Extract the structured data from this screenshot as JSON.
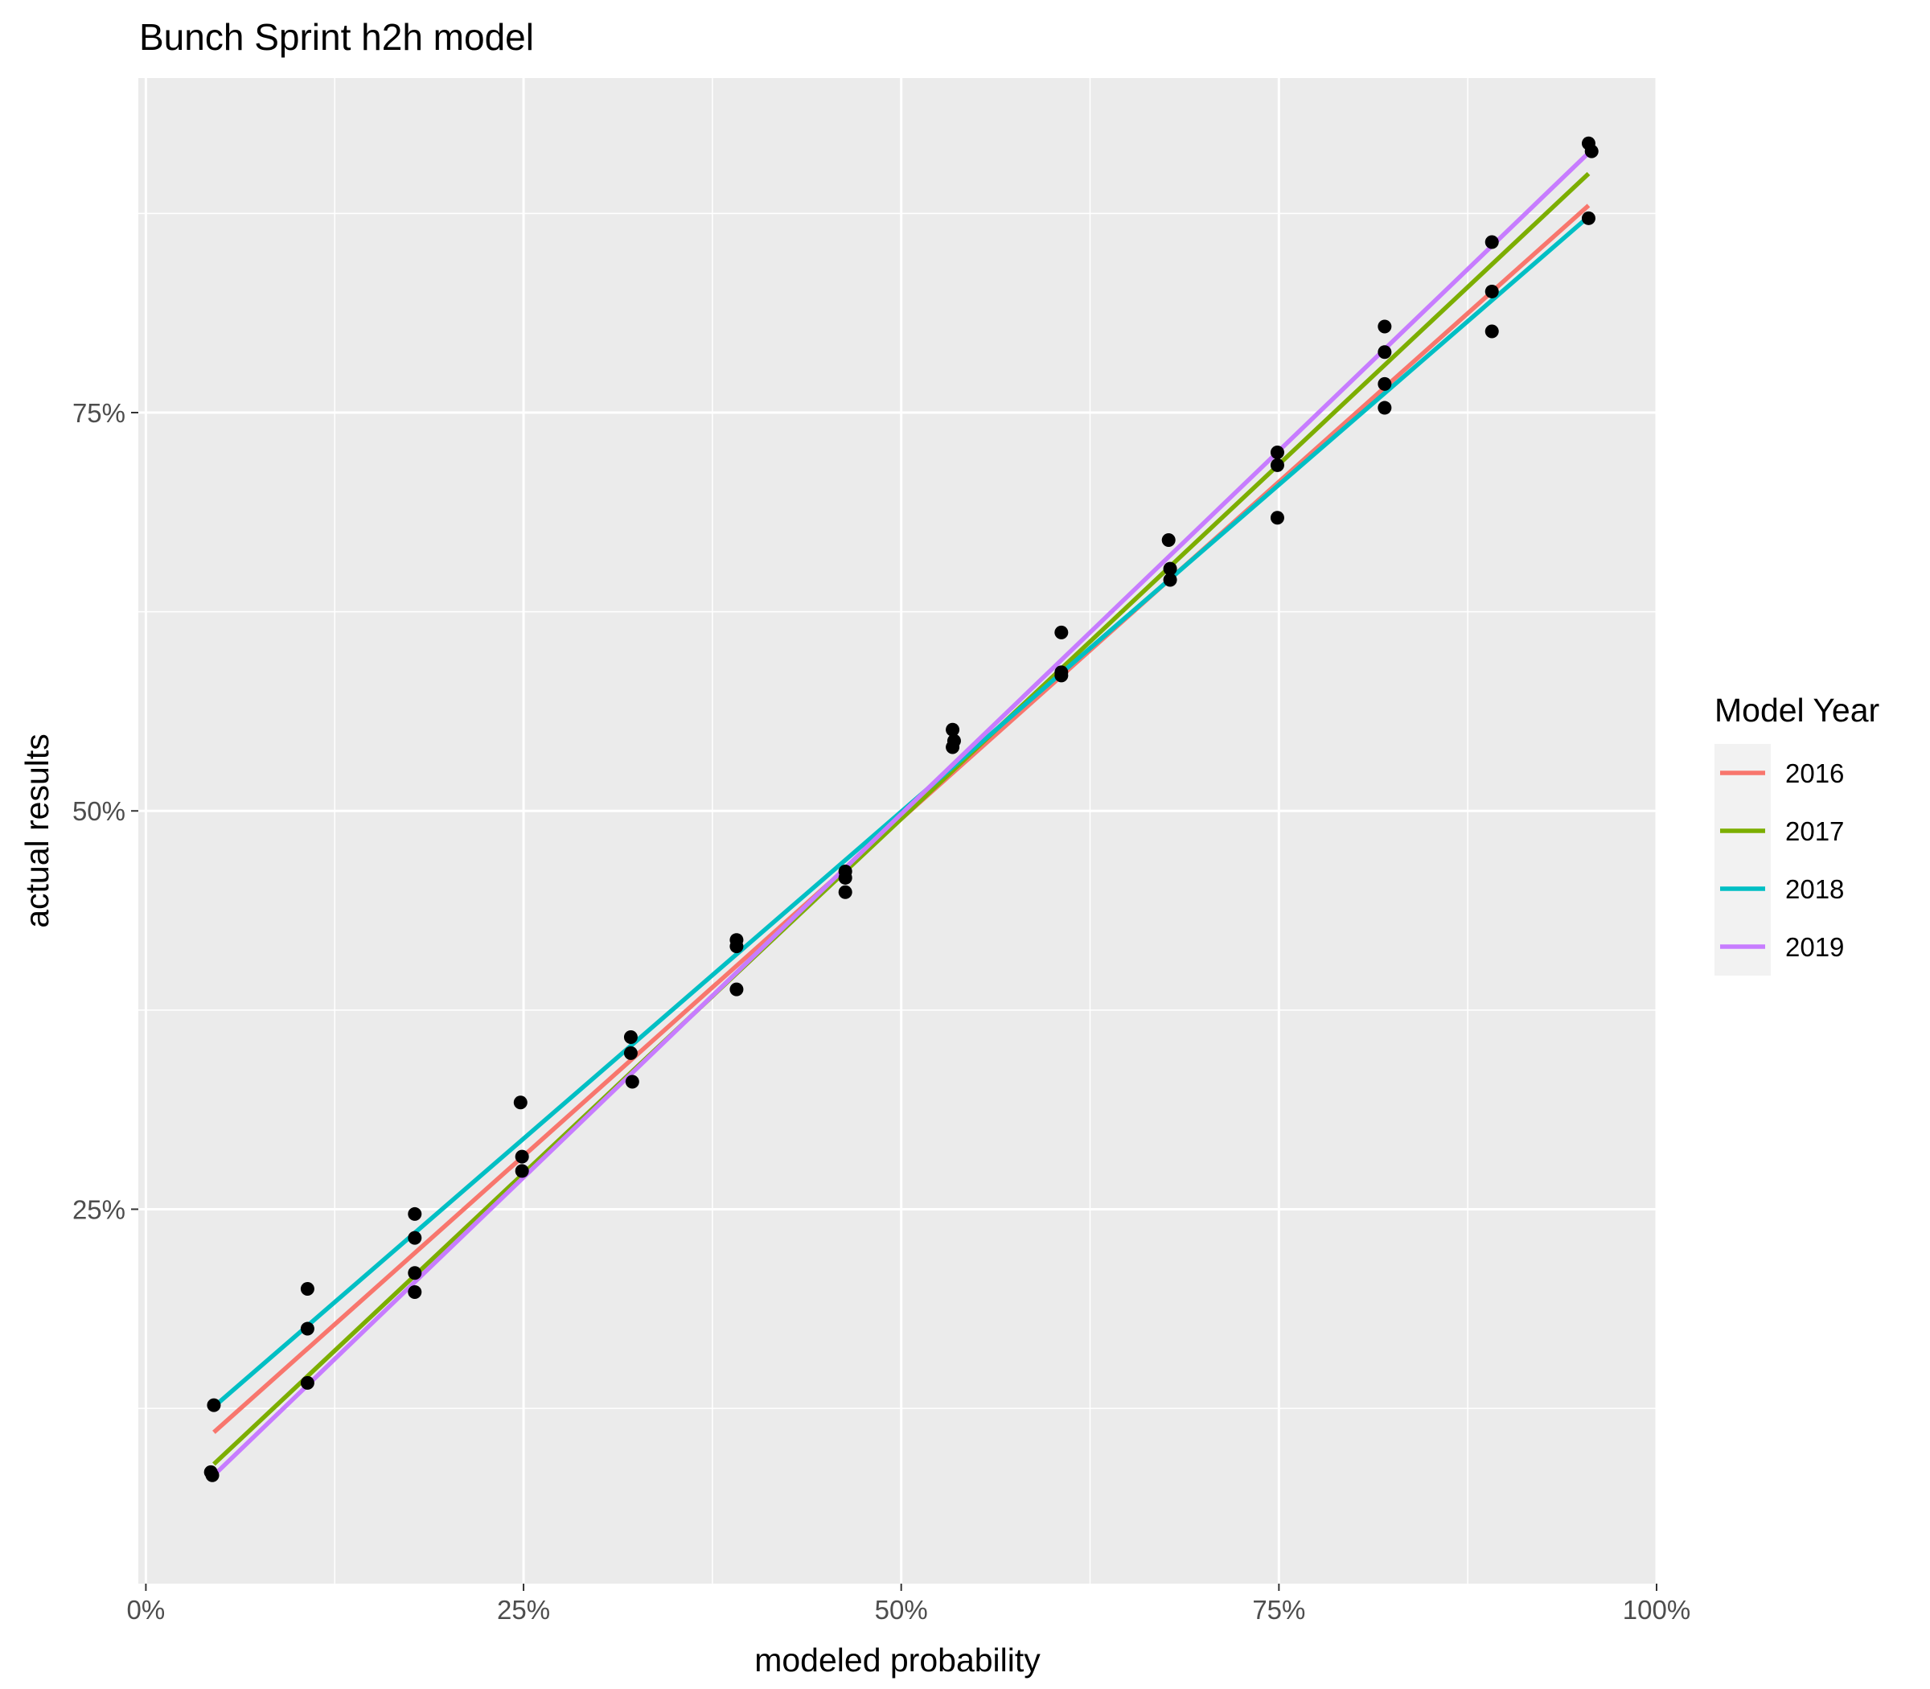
{
  "chart_data": {
    "type": "scatter",
    "title": "Bunch Sprint h2h model",
    "xlabel": "modeled probability",
    "ylabel": "actual results",
    "xlim": [
      -0.005,
      1.0
    ],
    "ylim": [
      0.015,
      0.96
    ],
    "x_ticks": [
      {
        "value": 0,
        "label": "0%"
      },
      {
        "value": 0.25,
        "label": "25%"
      },
      {
        "value": 0.5,
        "label": "50%"
      },
      {
        "value": 0.75,
        "label": "75%"
      },
      {
        "value": 1,
        "label": "100%"
      }
    ],
    "y_ticks": [
      {
        "value": 0.25,
        "label": "25%"
      },
      {
        "value": 0.5,
        "label": "50%"
      },
      {
        "value": 0.75,
        "label": "75%"
      }
    ],
    "grid": true,
    "legend": {
      "title": "Model Year",
      "placement": "right"
    },
    "series": [
      {
        "name": "2016",
        "color": "#F8766D",
        "x": [
          0.045,
          0.955
        ],
        "y": [
          0.11,
          0.88
        ]
      },
      {
        "name": "2017",
        "color": "#7CAE00",
        "x": [
          0.045,
          0.955
        ],
        "y": [
          0.09,
          0.9
        ]
      },
      {
        "name": "2018",
        "color": "#00BFC4",
        "x": [
          0.045,
          0.955
        ],
        "y": [
          0.126,
          0.873
        ]
      },
      {
        "name": "2019",
        "color": "#C77CFF",
        "x": [
          0.045,
          0.955
        ],
        "y": [
          0.083,
          0.913
        ]
      }
    ],
    "points": [
      {
        "x": 0.043,
        "y": 0.085
      },
      {
        "x": 0.044,
        "y": 0.083
      },
      {
        "x": 0.045,
        "y": 0.127
      },
      {
        "x": 0.107,
        "y": 0.2
      },
      {
        "x": 0.107,
        "y": 0.175
      },
      {
        "x": 0.107,
        "y": 0.141
      },
      {
        "x": 0.178,
        "y": 0.247
      },
      {
        "x": 0.178,
        "y": 0.232
      },
      {
        "x": 0.178,
        "y": 0.21
      },
      {
        "x": 0.178,
        "y": 0.198
      },
      {
        "x": 0.248,
        "y": 0.317
      },
      {
        "x": 0.249,
        "y": 0.283
      },
      {
        "x": 0.249,
        "y": 0.274
      },
      {
        "x": 0.321,
        "y": 0.358
      },
      {
        "x": 0.321,
        "y": 0.348
      },
      {
        "x": 0.322,
        "y": 0.33
      },
      {
        "x": 0.391,
        "y": 0.419
      },
      {
        "x": 0.391,
        "y": 0.415
      },
      {
        "x": 0.391,
        "y": 0.388
      },
      {
        "x": 0.463,
        "y": 0.462
      },
      {
        "x": 0.463,
        "y": 0.458
      },
      {
        "x": 0.463,
        "y": 0.449
      },
      {
        "x": 0.534,
        "y": 0.551
      },
      {
        "x": 0.535,
        "y": 0.544
      },
      {
        "x": 0.534,
        "y": 0.54
      },
      {
        "x": 0.606,
        "y": 0.612
      },
      {
        "x": 0.606,
        "y": 0.587
      },
      {
        "x": 0.606,
        "y": 0.585
      },
      {
        "x": 0.677,
        "y": 0.67
      },
      {
        "x": 0.678,
        "y": 0.652
      },
      {
        "x": 0.678,
        "y": 0.645
      },
      {
        "x": 0.749,
        "y": 0.725
      },
      {
        "x": 0.749,
        "y": 0.717
      },
      {
        "x": 0.749,
        "y": 0.684
      },
      {
        "x": 0.82,
        "y": 0.804
      },
      {
        "x": 0.82,
        "y": 0.788
      },
      {
        "x": 0.82,
        "y": 0.768
      },
      {
        "x": 0.82,
        "y": 0.753
      },
      {
        "x": 0.891,
        "y": 0.857
      },
      {
        "x": 0.891,
        "y": 0.826
      },
      {
        "x": 0.891,
        "y": 0.801
      },
      {
        "x": 0.955,
        "y": 0.919
      },
      {
        "x": 0.957,
        "y": 0.914
      },
      {
        "x": 0.955,
        "y": 0.872
      }
    ]
  }
}
